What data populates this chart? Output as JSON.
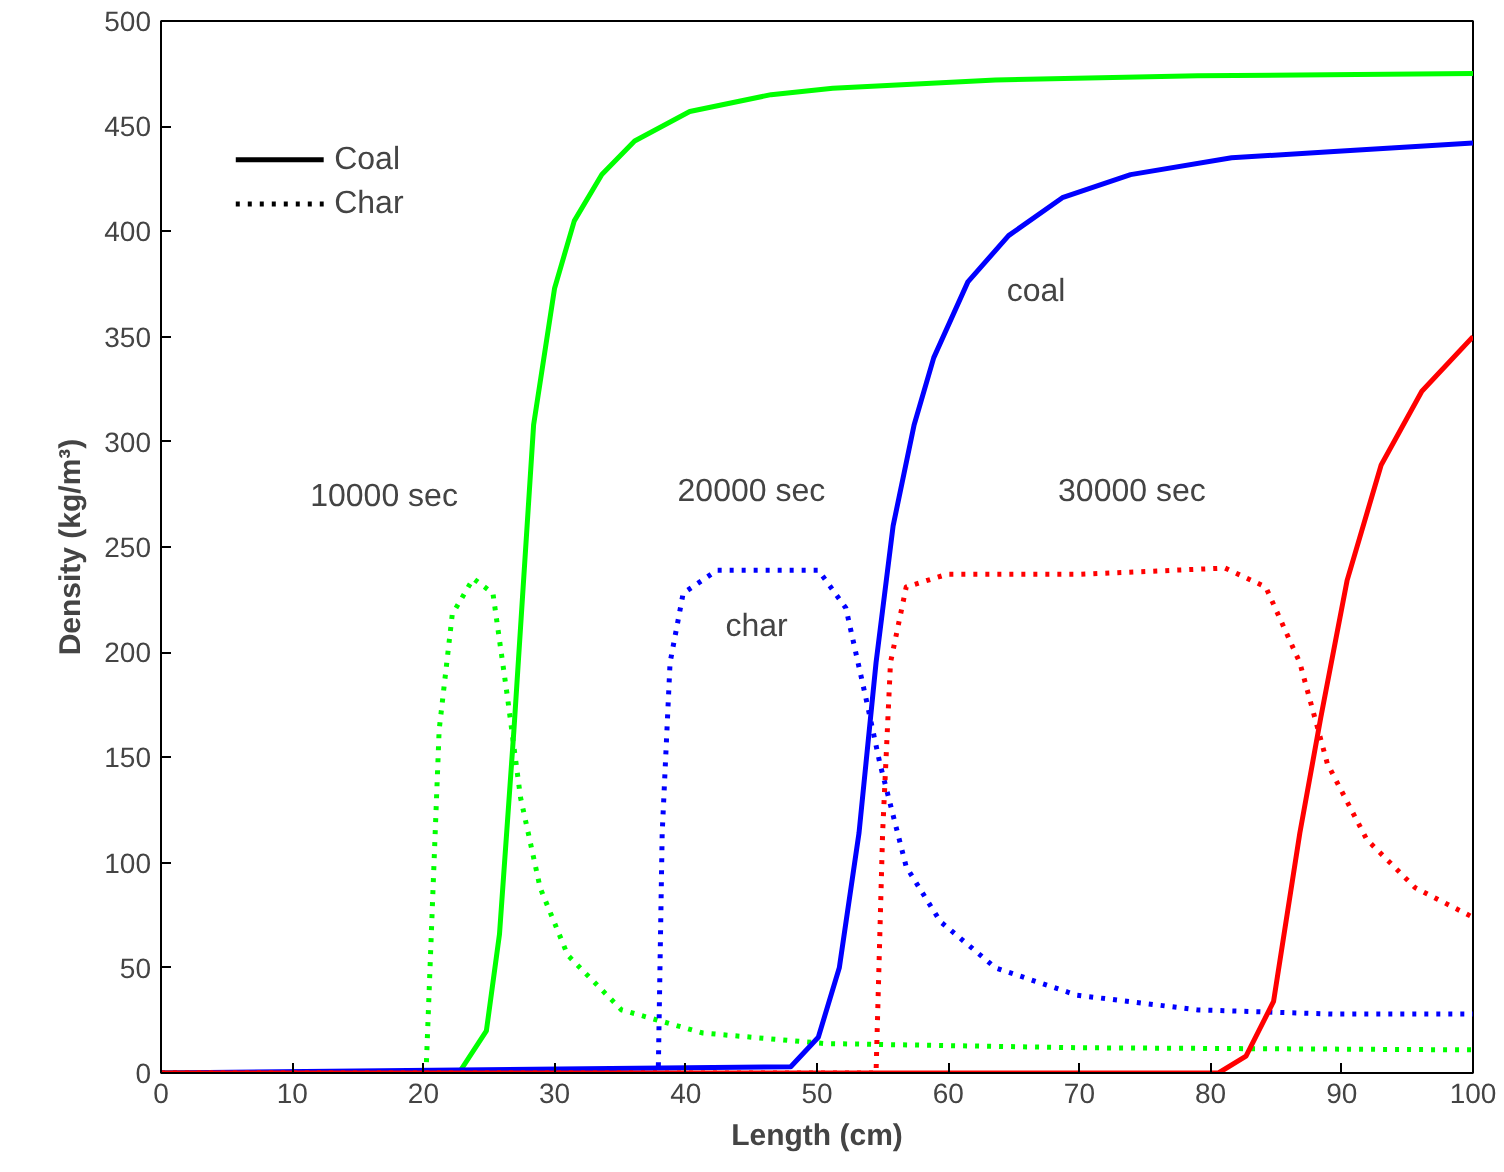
{
  "chart_data": {
    "type": "line",
    "xlabel": "Length (cm)",
    "ylabel": "Density (kg/m³)",
    "xlim": [
      0,
      100
    ],
    "ylim": [
      0,
      500
    ],
    "xticks": [
      0,
      10,
      20,
      30,
      40,
      50,
      60,
      70,
      80,
      90,
      100
    ],
    "yticks": [
      0,
      50,
      100,
      150,
      200,
      250,
      300,
      350,
      400,
      450,
      500
    ],
    "grid": false,
    "series": [
      {
        "color": "#00ff00",
        "line_style": "solid",
        "x": [
          0,
          22.7,
          24.8,
          25.8,
          26.9,
          28.4,
          30,
          31.5,
          33.6,
          36.1,
          40.3,
          46.5,
          51.2,
          63.6,
          79,
          100
        ],
        "values": [
          0,
          0,
          20,
          66,
          163,
          308,
          373,
          405,
          427,
          443,
          457,
          465,
          468,
          472,
          474,
          475
        ]
      },
      {
        "color": "#00ff00",
        "line_style": "dotted",
        "x": [
          0,
          20.2,
          20.7,
          21.2,
          22.2,
          23.8,
          25.3,
          26.4,
          27.4,
          28.9,
          31,
          35.1,
          41.3,
          50.6,
          70,
          100
        ],
        "values": [
          0,
          0,
          82,
          163,
          218,
          235,
          228,
          179,
          131,
          88,
          56,
          30,
          19,
          14,
          12,
          11
        ]
      },
      {
        "color": "#0000ff",
        "line_style": "solid",
        "x": [
          0,
          48,
          50.1,
          51.7,
          53.2,
          54.5,
          55.8,
          57.4,
          58.9,
          61.5,
          64.6,
          68.7,
          73.9,
          81.6,
          89.4,
          100
        ],
        "values": [
          0,
          3,
          17,
          50,
          114,
          195,
          260,
          308,
          340,
          376,
          398,
          416,
          427,
          435,
          438,
          442
        ]
      },
      {
        "color": "#0000ff",
        "line_style": "dotted",
        "x": [
          0,
          37.9,
          38.2,
          38.8,
          39.8,
          42.4,
          50.1,
          52.2,
          53.7,
          54.8,
          56.8,
          59.4,
          63.6,
          69.8,
          79,
          89.4,
          100
        ],
        "values": [
          0,
          0,
          114,
          195,
          228,
          239,
          239,
          221,
          179,
          147,
          98,
          72,
          50,
          37,
          30,
          28,
          28
        ]
      },
      {
        "color": "#ff0000",
        "line_style": "solid",
        "x": [
          0,
          80.6,
          82.7,
          84.8,
          86.8,
          88.4,
          90.4,
          93,
          96.1,
          100
        ],
        "values": [
          0,
          0,
          8,
          34,
          114,
          169,
          234,
          289,
          324,
          350
        ]
      },
      {
        "color": "#ff0000",
        "line_style": "dotted",
        "x": [
          0,
          54.5,
          55,
          55.6,
          56.8,
          59.9,
          70,
          81.1,
          84.2,
          86.8,
          88.9,
          91.9,
          95.6,
          100
        ],
        "values": [
          0,
          0,
          114,
          195,
          231,
          237,
          237,
          240,
          231,
          195,
          147,
          111,
          88,
          74
        ]
      }
    ],
    "annotations": [
      "Coal",
      "Char",
      "10000 sec",
      "20000 sec",
      "30000 sec",
      "coal",
      "char"
    ]
  }
}
